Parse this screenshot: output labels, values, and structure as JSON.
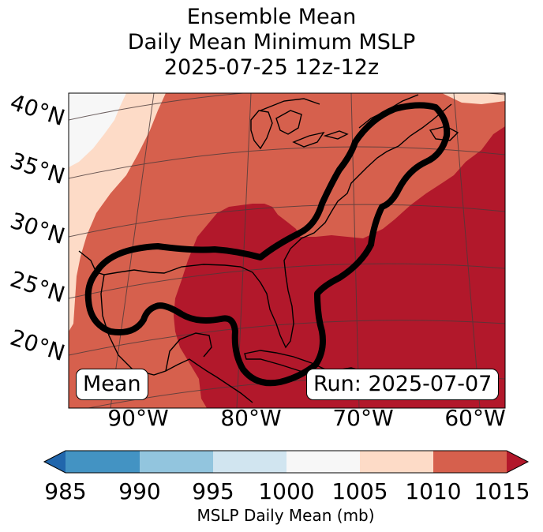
{
  "title": {
    "line1": "Ensemble Mean",
    "line2": "Daily Mean Minimum MSLP",
    "line3": "2025-07-25 12z-12z"
  },
  "map": {
    "lat_labels": [
      "40°N",
      "35°N",
      "30°N",
      "25°N",
      "20°N"
    ],
    "lon_labels": [
      "90°W",
      "80°W",
      "70°W",
      "60°W"
    ],
    "mean_label": "Mean",
    "run_label": "Run: 2025-07-07"
  },
  "colorbar": {
    "ticks": [
      "985",
      "990",
      "995",
      "1000",
      "1005",
      "1010",
      "1015"
    ],
    "title": "MSLP Daily Mean (mb)",
    "colors": {
      "below": "#2166ac",
      "b985_990": "#4393c3",
      "b990_995": "#92c5de",
      "b995_1000": "#d1e5f0",
      "b1000_1005": "#f7f7f7",
      "b1005_1010": "#fddbc7",
      "b1010_1015": "#d6604d",
      "above": "#b2182b"
    }
  }
}
